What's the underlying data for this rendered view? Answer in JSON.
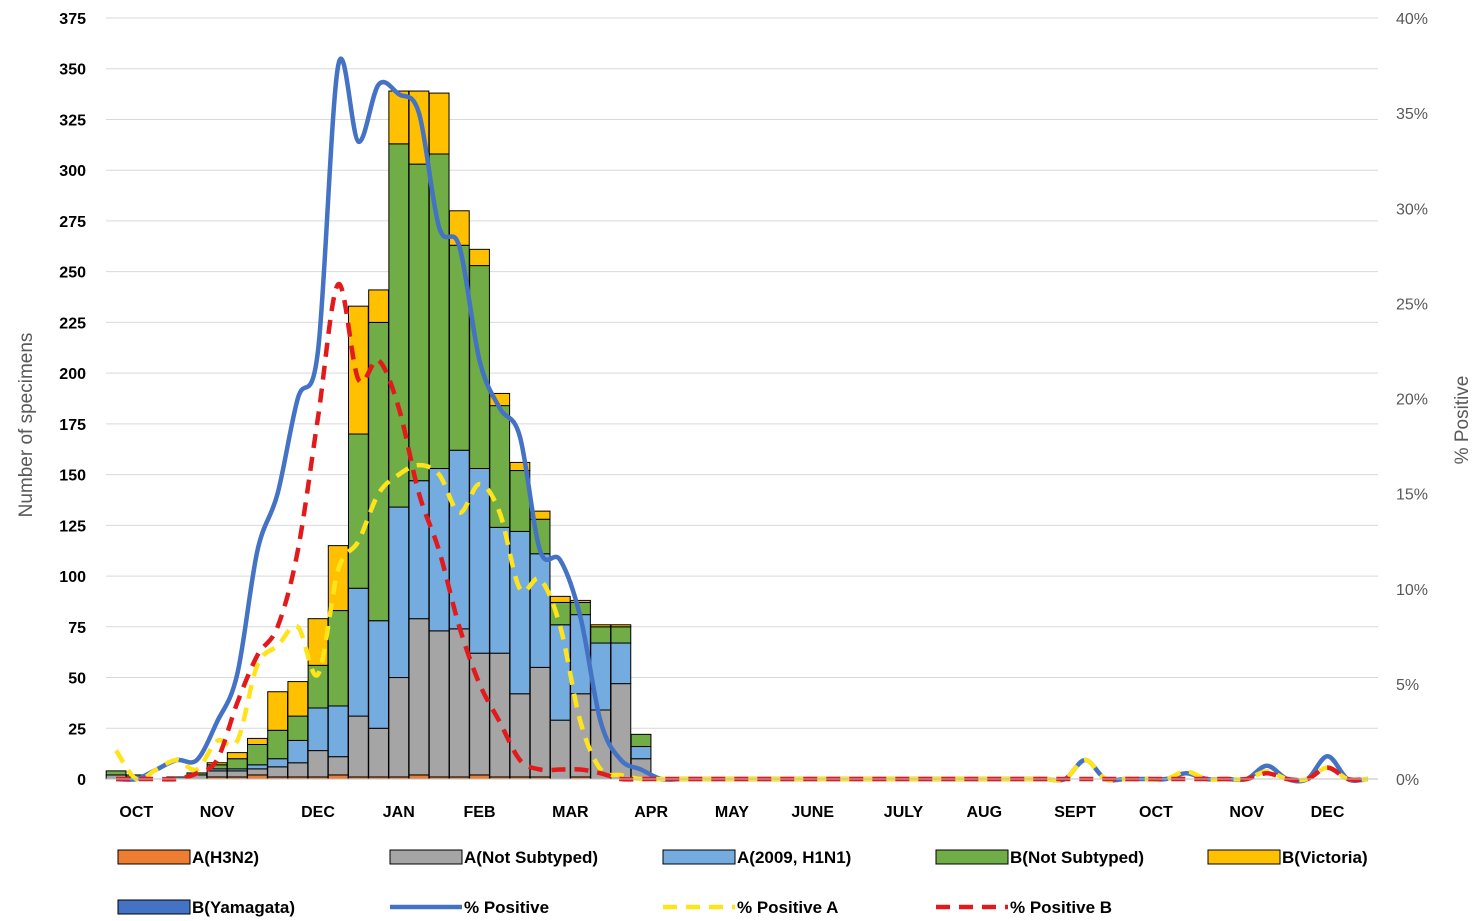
{
  "chart_data": {
    "type": "bar",
    "stacked": true,
    "ylabel": "Number of specimens",
    "y2label": "% Positive",
    "ylim": [
      0,
      375
    ],
    "y2lim": [
      0,
      40
    ],
    "yticks": [
      "0",
      "25",
      "50",
      "75",
      "100",
      "125",
      "150",
      "175",
      "200",
      "225",
      "250",
      "275",
      "300",
      "325",
      "350",
      "375"
    ],
    "y2ticks": [
      "0%",
      "5%",
      "10%",
      "15%",
      "20%",
      "25%",
      "30%",
      "35%",
      "40%"
    ],
    "grid": true,
    "legend_position": "bottom",
    "month_labels": [
      {
        "label": "OCT",
        "week": 1
      },
      {
        "label": "NOV",
        "week": 5
      },
      {
        "label": "DEC",
        "week": 10
      },
      {
        "label": "JAN",
        "week": 14
      },
      {
        "label": "FEB",
        "week": 18
      },
      {
        "label": "MAR",
        "week": 22.5
      },
      {
        "label": "APR",
        "week": 26.5
      },
      {
        "label": "MAY",
        "week": 30.5
      },
      {
        "label": "JUNE",
        "week": 34.5
      },
      {
        "label": "JULY",
        "week": 39
      },
      {
        "label": "AUG",
        "week": 43
      },
      {
        "label": "SEPT",
        "week": 47.5
      },
      {
        "label": "OCT",
        "week": 51.5
      },
      {
        "label": "NOV",
        "week": 56
      },
      {
        "label": "DEC",
        "week": 60
      }
    ],
    "weeks": 63,
    "bar_series": [
      {
        "name": "A(H3N2)",
        "color": "#ED7D31",
        "values": [
          0,
          0,
          0,
          0,
          0,
          1,
          1,
          2,
          1,
          1,
          1,
          2,
          1,
          1,
          1,
          2,
          1,
          1,
          2,
          1,
          1,
          1,
          0,
          1,
          0,
          0,
          0,
          0,
          0,
          0,
          0,
          0,
          0,
          0,
          0,
          0,
          0,
          0,
          0,
          0,
          0,
          0,
          0,
          0,
          0,
          0,
          0,
          0,
          0,
          0,
          0,
          0,
          0,
          0,
          0,
          0,
          0,
          0,
          0,
          0,
          0,
          0,
          0
        ]
      },
      {
        "name": "A(Not  Subtyped)",
        "color": "#A5A5A5",
        "values": [
          2,
          1,
          0,
          1,
          2,
          3,
          3,
          3,
          5,
          7,
          13,
          9,
          30,
          24,
          49,
          77,
          72,
          73,
          60,
          61,
          41,
          54,
          29,
          41,
          34,
          47,
          10,
          0,
          0,
          0,
          0,
          0,
          0,
          0,
          0,
          0,
          0,
          0,
          0,
          0,
          0,
          0,
          0,
          0,
          0,
          0,
          0,
          0,
          0,
          0,
          0,
          0,
          0,
          0,
          0,
          0,
          0,
          0,
          0,
          0,
          0,
          0,
          0
        ]
      },
      {
        "name": "A(2009, H1N1)",
        "color": "#74ACE0",
        "values": [
          0,
          0,
          0,
          0,
          0,
          1,
          1,
          2,
          4,
          11,
          21,
          25,
          63,
          53,
          84,
          68,
          80,
          88,
          91,
          62,
          80,
          56,
          47,
          39,
          33,
          20,
          6,
          0,
          0,
          0,
          0,
          0,
          0,
          0,
          0,
          0,
          0,
          0,
          0,
          0,
          0,
          0,
          0,
          0,
          0,
          0,
          0,
          0,
          0,
          0,
          0,
          0,
          0,
          0,
          0,
          0,
          0,
          0,
          0,
          0,
          0,
          0,
          0
        ]
      },
      {
        "name": "B(Not Subtyped)",
        "color": "#70AD47",
        "values": [
          2,
          1,
          0,
          0,
          1,
          2,
          5,
          10,
          14,
          12,
          21,
          47,
          76,
          147,
          179,
          156,
          155,
          101,
          100,
          60,
          30,
          17,
          11,
          6,
          8,
          8,
          6,
          0,
          0,
          0,
          0,
          0,
          0,
          0,
          0,
          0,
          0,
          0,
          0,
          0,
          0,
          0,
          0,
          0,
          0,
          0,
          0,
          0,
          0,
          0,
          0,
          0,
          0,
          0,
          0,
          0,
          0,
          0,
          0,
          0,
          0,
          0,
          0
        ]
      },
      {
        "name": "B(Victoria)",
        "color": "#FFC000",
        "values": [
          0,
          0,
          0,
          0,
          0,
          1,
          3,
          3,
          19,
          17,
          23,
          32,
          63,
          16,
          26,
          36,
          30,
          17,
          8,
          6,
          4,
          4,
          3,
          1,
          1,
          1,
          0,
          0,
          0,
          0,
          0,
          0,
          0,
          0,
          0,
          0,
          0,
          0,
          0,
          0,
          0,
          0,
          0,
          0,
          0,
          0,
          0,
          0,
          0,
          0,
          0,
          0,
          0,
          0,
          0,
          0,
          0,
          0,
          0,
          0,
          0,
          0,
          0
        ]
      },
      {
        "name": "B(Yamagata)",
        "color": "#4472C4",
        "values": [
          0,
          0,
          0,
          0,
          0,
          0,
          0,
          0,
          0,
          0,
          0,
          0,
          0,
          0,
          0,
          0,
          0,
          0,
          0,
          0,
          0,
          0,
          0,
          0,
          0,
          0,
          0,
          0,
          0,
          0,
          0,
          0,
          0,
          0,
          0,
          0,
          0,
          0,
          0,
          0,
          0,
          0,
          0,
          0,
          0,
          0,
          0,
          0,
          0,
          0,
          0,
          0,
          0,
          0,
          0,
          0,
          0,
          0,
          0,
          0,
          0,
          0,
          0
        ]
      }
    ],
    "line_series": [
      {
        "name": "% Positive",
        "color": "#4472C4",
        "dash": false,
        "values": [
          0,
          0,
          0.5,
          1,
          1,
          3,
          5.5,
          12,
          15,
          20,
          22.5,
          37.5,
          33.5,
          36.5,
          36,
          35,
          29,
          28,
          22,
          19.5,
          18,
          12,
          11.5,
          8.5,
          3,
          1,
          0.5,
          0,
          0,
          0,
          0,
          0,
          0,
          0,
          0,
          0,
          0,
          0,
          0,
          0,
          0,
          0,
          0,
          0,
          0,
          0,
          0,
          0,
          1,
          0,
          0,
          0,
          0,
          0.3,
          0,
          0,
          0,
          0.7,
          0,
          0,
          1.2,
          0,
          0
        ]
      },
      {
        "name": "% Positive A",
        "color": "#FFE41A",
        "dash": true,
        "values": [
          1.5,
          0,
          0.5,
          1,
          0.5,
          2,
          2,
          6,
          7,
          8,
          5.5,
          11,
          12.5,
          15,
          16,
          16.5,
          16,
          14,
          15.5,
          14,
          10,
          10.5,
          8,
          3,
          0.5,
          0.2,
          0,
          0,
          0,
          0,
          0,
          0,
          0,
          0,
          0,
          0,
          0,
          0,
          0,
          0,
          0,
          0,
          0,
          0,
          0,
          0,
          0,
          0,
          1,
          0,
          0,
          0,
          0,
          0.4,
          0,
          0,
          0,
          0.4,
          0,
          0,
          0.6,
          0,
          0
        ]
      },
      {
        "name": "% Positive B",
        "color": "#E31A1C",
        "dash": true,
        "values": [
          0,
          0,
          0,
          0,
          0.3,
          1,
          4,
          6.5,
          8,
          12,
          19,
          26,
          21,
          22,
          19.5,
          15,
          12,
          8,
          5,
          3,
          1,
          0.5,
          0.5,
          0.5,
          0.3,
          0,
          0,
          0,
          0,
          0,
          0,
          0,
          0,
          0,
          0,
          0,
          0,
          0,
          0,
          0,
          0,
          0,
          0,
          0,
          0,
          0,
          0,
          0,
          0,
          0,
          0,
          0,
          0,
          0,
          0,
          0,
          0,
          0.3,
          0,
          0,
          0.6,
          0,
          0
        ]
      }
    ]
  }
}
